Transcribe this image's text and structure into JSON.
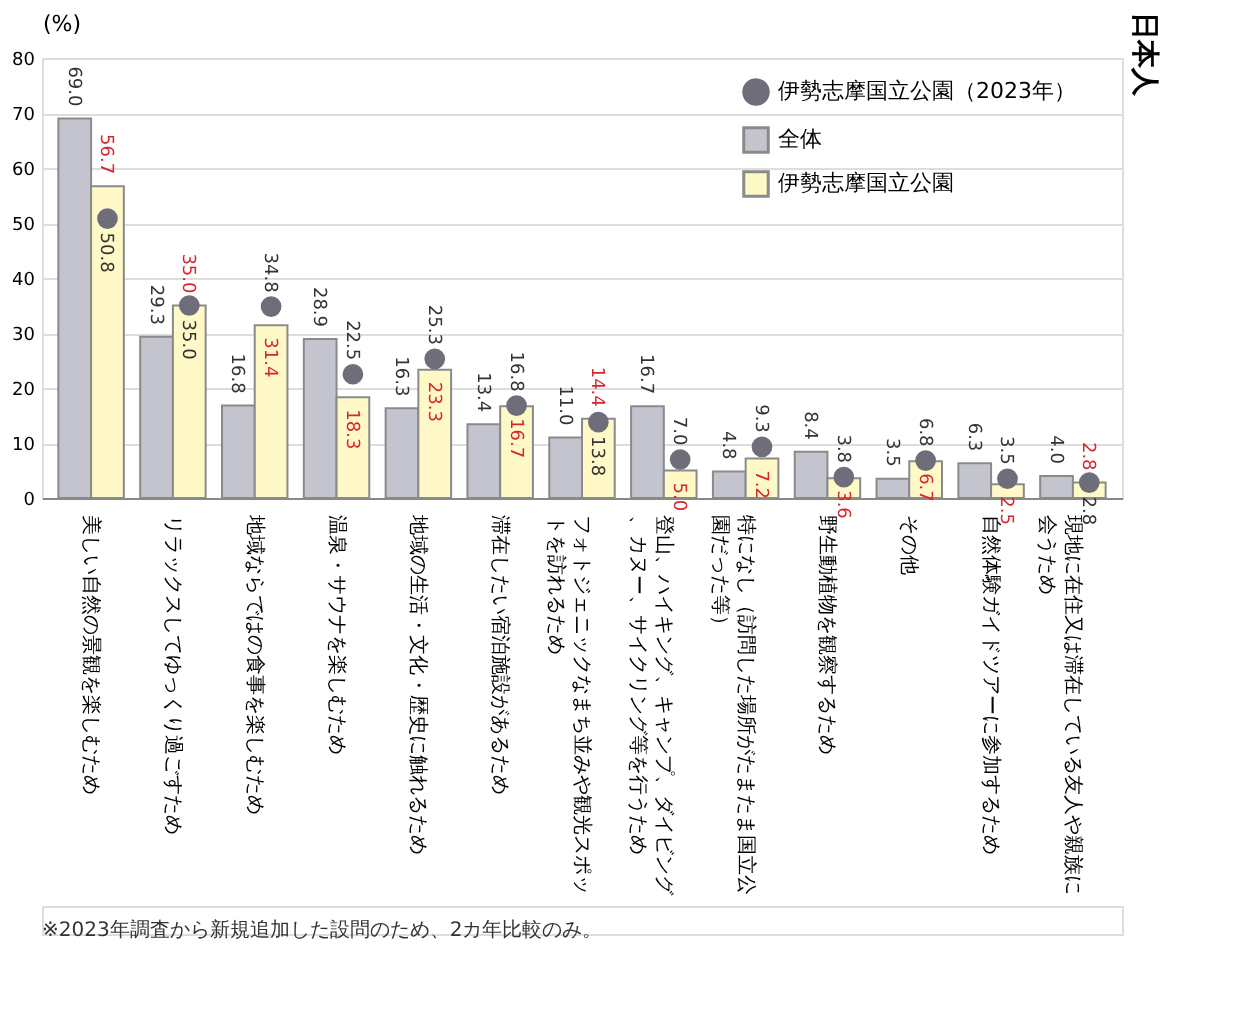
{
  "chart_data": {
    "type": "bar",
    "title": "日本人",
    "ylabel": "(%)",
    "categories": [
      "美しい自然の景観を楽しむため",
      "リラックスしてゆっくり過ごすため",
      "地域ならではの食事を楽しむため",
      "温泉・サウナを楽しむため",
      "地域の生活・文化・歴史に触れるため",
      "滞在したい宿泊施設があるため",
      "フォトジェニックなまち並みや観光スポットを訪れるため",
      "登山、ハイキング、キャンプ、ダイビング、カヌー、サイクリング等を行うため",
      "特になし（訪問した場所がたまたま国立公園だった等）",
      "野生動植物を観察するため",
      "その他",
      "自然体験ガイドツアーに参加するため",
      "現地に在住又は滞在している友人や親族に会うため"
    ],
    "series": [
      {
        "name": "全体",
        "type": "bar",
        "color": "#c4c4ce",
        "values": [
          69.0,
          29.3,
          16.8,
          28.9,
          16.3,
          13.4,
          11.0,
          16.7,
          4.8,
          8.4,
          3.5,
          6.3,
          4.0
        ],
        "value_labels": [
          "69.0",
          "29.3",
          "16.8",
          "28.9",
          "16.3",
          "13.4",
          "11.0",
          "16.7",
          "4.8",
          "8.4",
          "3.5",
          "6.3",
          "4.0"
        ]
      },
      {
        "name": "伊勢志摩国立公園",
        "type": "bar",
        "color": "#fff9c8",
        "values": [
          56.7,
          35.0,
          31.4,
          18.3,
          23.3,
          16.7,
          14.4,
          5.0,
          7.2,
          3.6,
          6.7,
          2.5,
          2.8
        ],
        "value_labels": [
          "56.7",
          "35.0",
          "31.4",
          "18.3",
          "23.3",
          "16.7",
          "14.4",
          "5.0",
          "7.2",
          "3.6",
          "6.7",
          "2.5",
          "2.8"
        ]
      },
      {
        "name": "伊勢志摩国立公園（2023年）",
        "type": "scatter",
        "color": "#6e6e7a",
        "marker": "circle",
        "values": [
          50.8,
          35.0,
          34.8,
          22.5,
          25.3,
          16.8,
          13.8,
          7.0,
          9.3,
          3.8,
          6.8,
          3.5,
          2.8
        ],
        "value_labels": [
          "50.8",
          "35.0",
          "34.8",
          "22.5",
          "25.3",
          "16.8",
          "13.8",
          "7.0",
          "9.3",
          "3.8",
          "6.8",
          "3.5",
          "2.8"
        ]
      }
    ],
    "ylim": [
      0,
      80
    ],
    "yticks": [
      0,
      10,
      20,
      30,
      40,
      50,
      60,
      70,
      80
    ],
    "grid": "y",
    "legend": "top right",
    "annotations": [
      "※2023年調査から新規追加した設問のため、2カ年比較のみ。"
    ]
  }
}
